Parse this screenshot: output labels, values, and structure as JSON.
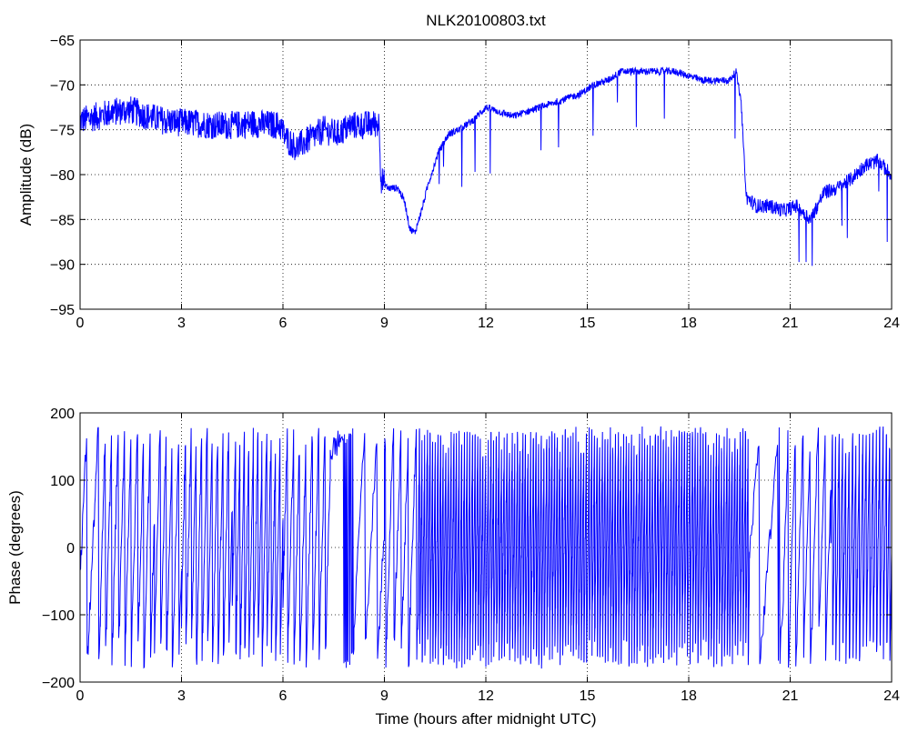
{
  "chart_data": [
    {
      "type": "line",
      "title": "NLK20100803.txt",
      "xlabel": "",
      "ylabel": "Amplitude (dB)",
      "xlim": [
        0,
        24
      ],
      "ylim": [
        -95,
        -65
      ],
      "xticks": [
        0,
        3,
        6,
        9,
        12,
        15,
        18,
        21,
        24
      ],
      "yticks": [
        -65,
        -70,
        -75,
        -80,
        -85,
        -90,
        -95
      ],
      "xtick_labels": [
        "0",
        "3",
        "6",
        "9",
        "12",
        "15",
        "18",
        "21",
        "24"
      ],
      "ytick_labels": [
        "−65",
        "−70",
        "−75",
        "−80",
        "−85",
        "−90",
        "−95"
      ],
      "grid": true,
      "color": "#0000ff",
      "series": [
        {
          "x": [
            0,
            0.5,
            1,
            1.5,
            2,
            2.5,
            3,
            3.5,
            4,
            4.5,
            5,
            5.5,
            5.9,
            6.1,
            6.4,
            6.8,
            7.2,
            7.6,
            8,
            8.4,
            8.85,
            8.9,
            9.1,
            9.4,
            9.6,
            9.75,
            9.9,
            10.1,
            10.3,
            10.6,
            10.9,
            11.2,
            11.6,
            12,
            12.4,
            12.8,
            13.2,
            13.6,
            14,
            14.4,
            14.8,
            15.2,
            15.6,
            16,
            16.4,
            16.8,
            17.2,
            17.6,
            18,
            18.4,
            18.8,
            19.2,
            19.4,
            19.55,
            19.7,
            20,
            20.4,
            20.8,
            21.2,
            21.6,
            22,
            22.4,
            22.8,
            23.2,
            23.6,
            24
          ],
          "y": [
            -74,
            -73.5,
            -73,
            -72.8,
            -73.5,
            -74,
            -74.2,
            -74.3,
            -74.5,
            -74.5,
            -74.3,
            -74.4,
            -74.5,
            -76,
            -77,
            -76,
            -75,
            -75.5,
            -74.5,
            -74.5,
            -74.3,
            -80.5,
            -81.5,
            -81.5,
            -83,
            -86,
            -86.5,
            -84,
            -81,
            -77.5,
            -75.5,
            -75,
            -74,
            -72.5,
            -73,
            -73.5,
            -73,
            -72.5,
            -72,
            -71.5,
            -71,
            -70,
            -69.5,
            -68.5,
            -68.5,
            -68.5,
            -68.5,
            -68.5,
            -69,
            -69.5,
            -69.5,
            -69.5,
            -68.5,
            -72,
            -82.5,
            -83.5,
            -83.5,
            -84,
            -83.5,
            -85,
            -82,
            -81.5,
            -80.5,
            -79,
            -78.5,
            -80
          ]
        }
      ]
    },
    {
      "type": "line",
      "title": "",
      "xlabel": "Time (hours after midnight UTC)",
      "ylabel": "Phase (degrees)",
      "xlim": [
        0,
        24
      ],
      "ylim": [
        -200,
        200
      ],
      "xticks": [
        0,
        3,
        6,
        9,
        12,
        15,
        18,
        21,
        24
      ],
      "yticks": [
        200,
        100,
        0,
        -100,
        -200
      ],
      "xtick_labels": [
        "0",
        "3",
        "6",
        "9",
        "12",
        "15",
        "18",
        "21",
        "24"
      ],
      "ytick_labels": [
        "200",
        "100",
        "0",
        "−100",
        "−200"
      ],
      "grid": true,
      "color": "#0000ff",
      "series": [
        {
          "segments": [
            {
              "x0": 0,
              "x1": 0.6,
              "y0": -40,
              "y1": -120,
              "cycles": 2
            },
            {
              "x0": 0.6,
              "x1": 2.2,
              "y0": -100,
              "y1": 50,
              "cycles": 8
            },
            {
              "x0": 2.2,
              "x1": 3.0,
              "y0": -150,
              "y1": -20,
              "cycles": 4
            },
            {
              "x0": 3.0,
              "x1": 4.5,
              "y0": -100,
              "y1": 60,
              "cycles": 9
            },
            {
              "x0": 4.5,
              "x1": 6.0,
              "y0": -100,
              "y1": 50,
              "cycles": 11
            },
            {
              "x0": 6.0,
              "x1": 7.4,
              "y0": -80,
              "y1": 120,
              "cycles": 7
            },
            {
              "x0": 7.4,
              "x1": 8.1,
              "y0": 140,
              "y1": -170,
              "cycles": 1
            },
            {
              "x0": 8.1,
              "x1": 9.0,
              "y0": -120,
              "y1": 30,
              "cycles": 2
            },
            {
              "x0": 9.0,
              "x1": 10.0,
              "y0": 120,
              "y1": -80,
              "cycles": 5
            },
            {
              "x0": 10.0,
              "x1": 19.8,
              "y0": 0,
              "y1": 0,
              "cycles": 125
            },
            {
              "x0": 19.8,
              "x1": 20.8,
              "y0": -10,
              "y1": -90,
              "cycles": 2
            },
            {
              "x0": 20.8,
              "x1": 22.2,
              "y0": -60,
              "y1": 80,
              "cycles": 6
            },
            {
              "x0": 22.2,
              "x1": 24,
              "y0": 0,
              "y1": 0,
              "cycles": 18
            }
          ]
        }
      ]
    }
  ]
}
